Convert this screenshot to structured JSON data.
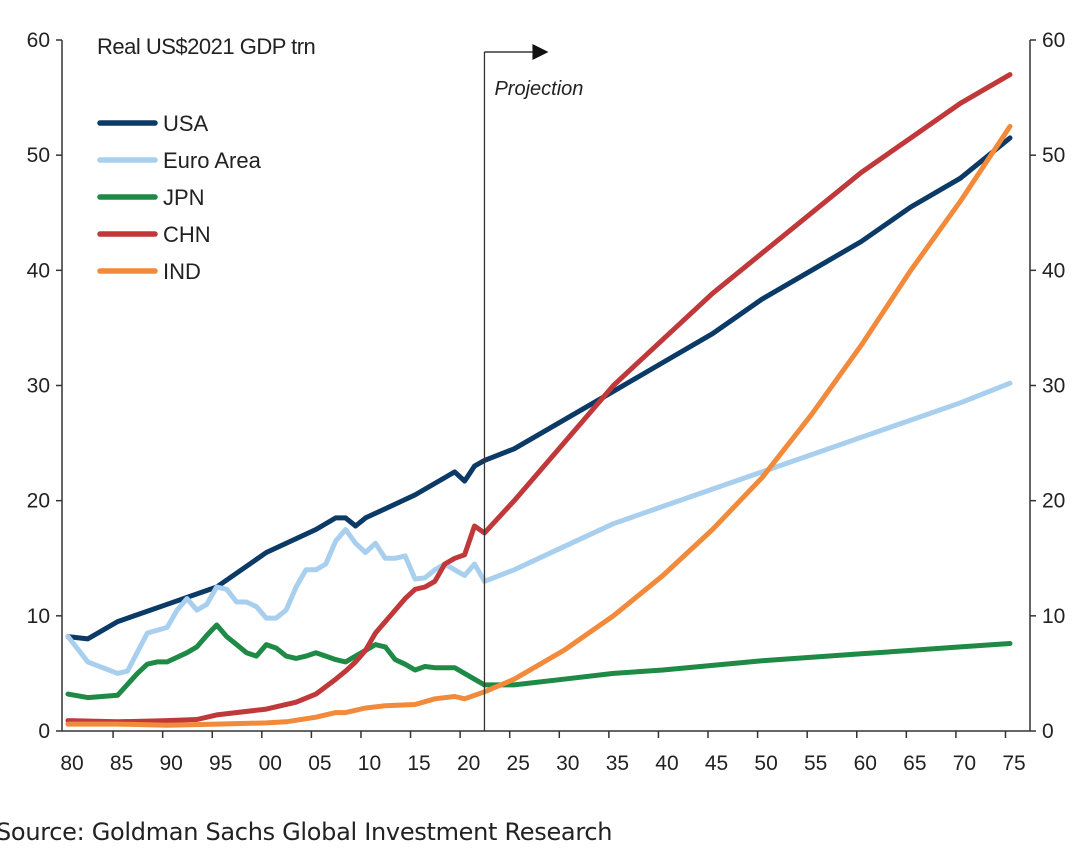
{
  "chart_data": {
    "type": "line",
    "title": "Real US$2021 GDP trn",
    "xlabel": "",
    "ylabel": "",
    "xlim": [
      1980,
      2075
    ],
    "ylim": [
      0,
      60
    ],
    "yticks": [
      0,
      10,
      20,
      30,
      40,
      50,
      60
    ],
    "xtick_labels": [
      "80",
      "85",
      "90",
      "95",
      "00",
      "05",
      "10",
      "15",
      "20",
      "25",
      "30",
      "35",
      "40",
      "45",
      "50",
      "55",
      "60",
      "65",
      "70",
      "75"
    ],
    "xtick_years": [
      1980,
      1985,
      1990,
      1995,
      2000,
      2005,
      2010,
      2015,
      2020,
      2025,
      2030,
      2035,
      2040,
      2045,
      2050,
      2055,
      2060,
      2065,
      2070,
      2075
    ],
    "right_axis": true,
    "grid": false,
    "legend_placement": "top-left",
    "annotation": {
      "label": "Projection",
      "x": 2022
    },
    "series": [
      {
        "name": "USA",
        "color": "#0b3a66",
        "x": [
          1980,
          1982,
          1985,
          1990,
          1995,
          2000,
          2005,
          2007,
          2008,
          2009,
          2010,
          2015,
          2019,
          2020,
          2021,
          2022,
          2025,
          2030,
          2035,
          2040,
          2045,
          2050,
          2055,
          2060,
          2065,
          2070,
          2075
        ],
        "y": [
          8.2,
          8.0,
          9.5,
          11,
          12.5,
          15.5,
          17.5,
          18.5,
          18.5,
          17.8,
          18.5,
          20.5,
          22.5,
          21.7,
          23,
          23.5,
          24.5,
          27,
          29.5,
          32,
          34.5,
          37.5,
          40,
          42.5,
          45.5,
          48,
          51.5
        ]
      },
      {
        "name": "Euro Area",
        "color": "#a9cfee",
        "x": [
          1980,
          1982,
          1985,
          1986,
          1988,
          1990,
          1991,
          1992,
          1993,
          1994,
          1995,
          1996,
          1997,
          1998,
          1999,
          2000,
          2001,
          2002,
          2003,
          2004,
          2005,
          2006,
          2007,
          2008,
          2009,
          2010,
          2011,
          2012,
          2013,
          2014,
          2015,
          2016,
          2017,
          2018,
          2019,
          2020,
          2021,
          2022,
          2025,
          2030,
          2035,
          2040,
          2045,
          2050,
          2055,
          2060,
          2065,
          2070,
          2075
        ],
        "y": [
          8.2,
          6,
          5,
          5.2,
          8.5,
          9,
          10.5,
          11.5,
          10.5,
          11,
          12.5,
          12.3,
          11.2,
          11.2,
          10.8,
          9.8,
          9.8,
          10.5,
          12.5,
          14,
          14,
          14.5,
          16.5,
          17.5,
          16.3,
          15.5,
          16.3,
          15,
          15,
          15.2,
          13.2,
          13.3,
          14,
          14.5,
          14,
          13.5,
          14.5,
          13,
          14,
          16,
          18,
          19.5,
          21,
          22.5,
          24,
          25.5,
          27,
          28.5,
          30.2
        ]
      },
      {
        "name": "JPN",
        "color": "#1e8a45",
        "x": [
          1980,
          1982,
          1985,
          1987,
          1988,
          1989,
          1990,
          1992,
          1993,
          1994,
          1995,
          1996,
          1997,
          1998,
          1999,
          2000,
          2001,
          2002,
          2003,
          2004,
          2005,
          2006,
          2007,
          2008,
          2009,
          2010,
          2011,
          2012,
          2013,
          2014,
          2015,
          2016,
          2017,
          2018,
          2019,
          2020,
          2021,
          2022,
          2025,
          2030,
          2035,
          2040,
          2045,
          2050,
          2055,
          2060,
          2065,
          2070,
          2075
        ],
        "y": [
          3.2,
          2.9,
          3.1,
          5,
          5.8,
          6,
          6,
          6.8,
          7.3,
          8.3,
          9.2,
          8.2,
          7.5,
          6.8,
          6.5,
          7.5,
          7.2,
          6.5,
          6.3,
          6.5,
          6.8,
          6.5,
          6.2,
          6,
          6.5,
          7,
          7.5,
          7.3,
          6.2,
          5.8,
          5.3,
          5.6,
          5.5,
          5.5,
          5.5,
          5,
          4.5,
          4,
          4,
          4.5,
          5,
          5.3,
          5.7,
          6.1,
          6.4,
          6.7,
          7,
          7.3,
          7.6
        ]
      },
      {
        "name": "CHN",
        "color": "#c0383a",
        "x": [
          1980,
          1985,
          1990,
          1993,
          1995,
          2000,
          2003,
          2005,
          2007,
          2008,
          2009,
          2010,
          2011,
          2012,
          2013,
          2014,
          2015,
          2016,
          2017,
          2018,
          2019,
          2020,
          2021,
          2022,
          2025,
          2030,
          2035,
          2040,
          2045,
          2050,
          2055,
          2060,
          2065,
          2070,
          2075
        ],
        "y": [
          0.9,
          0.8,
          0.9,
          1.0,
          1.4,
          1.9,
          2.5,
          3.2,
          4.5,
          5.2,
          6,
          7,
          8.5,
          9.5,
          10.5,
          11.5,
          12.3,
          12.5,
          13,
          14.5,
          15,
          15.3,
          17.8,
          17.2,
          20,
          25,
          30,
          34,
          38,
          41.5,
          45,
          48.5,
          51.5,
          54.5,
          57
        ]
      },
      {
        "name": "IND",
        "color": "#f28a3c",
        "x": [
          1980,
          1985,
          1990,
          1995,
          2000,
          2002,
          2005,
          2007,
          2008,
          2010,
          2012,
          2015,
          2017,
          2019,
          2020,
          2021,
          2022,
          2025,
          2030,
          2035,
          2040,
          2045,
          2050,
          2055,
          2060,
          2065,
          2070,
          2075
        ],
        "y": [
          0.6,
          0.6,
          0.5,
          0.6,
          0.7,
          0.8,
          1.2,
          1.6,
          1.6,
          2.0,
          2.2,
          2.3,
          2.8,
          3,
          2.8,
          3.1,
          3.4,
          4.5,
          7,
          10,
          13.5,
          17.5,
          22,
          27.5,
          33.5,
          40,
          46,
          52.5
        ]
      }
    ]
  },
  "source": "Source: Goldman Sachs Global Investment Research"
}
